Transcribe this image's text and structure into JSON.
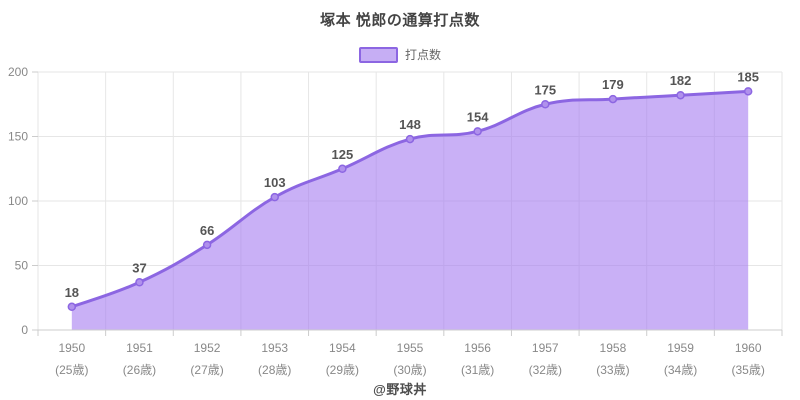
{
  "page": {
    "title": "塚本 悦郎の通算打点数",
    "footer": "@野球丼"
  },
  "legend": {
    "label": "打点数"
  },
  "colors": {
    "line": "#8c66e2",
    "area_fill": "#a57cf0",
    "area_opacity": 0.6,
    "marker_fill": "#b091ec",
    "marker_stroke": "#8c66e2",
    "grid": "#e6e6e6",
    "axis_line": "#cccccc",
    "axis_text": "#888888",
    "value_text": "#555555",
    "legend_box_fill": "#c6aef4",
    "legend_box_border": "#8c66e2"
  },
  "chart_data": {
    "type": "area",
    "title": "塚本 悦郎の通算打点数",
    "series": [
      {
        "name": "打点数",
        "values": [
          18,
          37,
          66,
          103,
          125,
          148,
          154,
          175,
          179,
          182,
          185
        ]
      }
    ],
    "categories": [
      {
        "year": "1950",
        "age": "(25歳)"
      },
      {
        "year": "1951",
        "age": "(26歳)"
      },
      {
        "year": "1952",
        "age": "(27歳)"
      },
      {
        "year": "1953",
        "age": "(28歳)"
      },
      {
        "year": "1954",
        "age": "(29歳)"
      },
      {
        "year": "1955",
        "age": "(30歳)"
      },
      {
        "year": "1956",
        "age": "(31歳)"
      },
      {
        "year": "1957",
        "age": "(32歳)"
      },
      {
        "year": "1958",
        "age": "(33歳)"
      },
      {
        "year": "1959",
        "age": "(34歳)"
      },
      {
        "year": "1960",
        "age": "(35歳)"
      }
    ],
    "ylim": [
      0,
      200
    ],
    "yticks": [
      0,
      50,
      100,
      150,
      200
    ],
    "grid": true,
    "smooth": true,
    "legend_position": "top",
    "xlabel": "",
    "ylabel": ""
  }
}
